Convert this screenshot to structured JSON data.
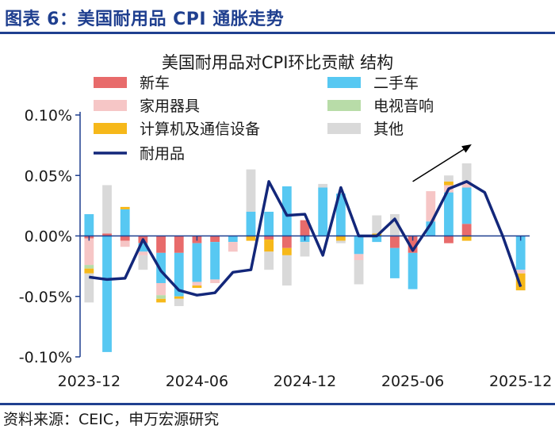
{
  "header": {
    "title": "图表 6：美国耐用品 CPI 通胀走势"
  },
  "footer": {
    "source": "资料来源：CEIC，申万宏源研究"
  },
  "colors": {
    "brand_blue": "#1f3f8f",
    "axis": "#1f3f8f",
    "text": "#1a1a1a"
  },
  "chart_data": {
    "type": "bar",
    "stacked": true,
    "title": "美国耐用品对CPI环比贡献 结构",
    "ylim": [
      -0.1,
      0.1
    ],
    "ytick_values": [
      -0.1,
      -0.05,
      0.0,
      0.05,
      0.1
    ],
    "ytick_labels": [
      "-0.10%",
      "-0.05%",
      "0.00%",
      "0.05%",
      "0.10%"
    ],
    "x": [
      "2023-12",
      "2024-01",
      "2024-02",
      "2024-03",
      "2024-04",
      "2024-05",
      "2024-06",
      "2024-07",
      "2024-08",
      "2024-09",
      "2024-10",
      "2024-11",
      "2024-12",
      "2025-01",
      "2025-02",
      "2025-03",
      "2025-04",
      "2025-05",
      "2025-06",
      "2025-07",
      "2025-08",
      "2025-09",
      "2025-10",
      "2025-11",
      "2025-12"
    ],
    "xtick_labels": [
      "2023-12",
      "2024-06",
      "2024-12",
      "2025-06",
      "2025-12"
    ],
    "xtick_index": [
      0,
      6,
      12,
      18,
      24
    ],
    "grid": false,
    "legend_position": "top",
    "series": [
      {
        "name": "新车",
        "color": "#e86b6b",
        "values": [
          -0.002,
          0.002,
          -0.004,
          -0.006,
          -0.014,
          -0.014,
          -0.006,
          -0.005,
          0.0,
          0.0,
          -0.003,
          -0.01,
          0.013,
          0.0,
          0.0,
          0.0,
          0.0,
          -0.01,
          -0.014,
          0.0,
          -0.006,
          0.01,
          null,
          null,
          0.0
        ]
      },
      {
        "name": "二手车",
        "color": "#57c8f2",
        "values": [
          0.018,
          -0.096,
          0.022,
          -0.007,
          -0.025,
          -0.036,
          -0.032,
          -0.031,
          -0.005,
          0.02,
          0.02,
          0.041,
          -0.005,
          0.04,
          0.035,
          -0.015,
          -0.005,
          -0.025,
          -0.03,
          0.012,
          0.036,
          0.03,
          null,
          null,
          -0.028
        ]
      },
      {
        "name": "家用器具",
        "color": "#f6c6c6",
        "values": [
          -0.022,
          0.0,
          -0.005,
          -0.003,
          -0.01,
          0.0,
          -0.003,
          -0.003,
          -0.008,
          0.0,
          0.0,
          0.0,
          0.0,
          0.0,
          0.0,
          -0.005,
          0.0,
          0.0,
          0.0,
          0.025,
          0.006,
          0.005,
          null,
          null,
          -0.003
        ]
      },
      {
        "name": "电视音响",
        "color": "#b8dca8",
        "values": [
          -0.003,
          0.0,
          0.0,
          0.0,
          -0.003,
          0.0,
          0.0,
          0.0,
          0.0,
          0.0,
          0.0,
          0.0,
          0.0,
          0.0,
          0.0,
          0.0,
          0.0,
          0.0,
          0.0,
          0.0,
          0.0,
          0.0,
          null,
          null,
          0.0
        ]
      },
      {
        "name": "计算机及通信设备",
        "color": "#f6b81a",
        "values": [
          -0.004,
          0.0,
          0.002,
          0.0,
          -0.003,
          -0.002,
          -0.002,
          0.0,
          0.0,
          -0.004,
          -0.01,
          -0.006,
          0.0,
          0.0,
          -0.004,
          0.0,
          0.002,
          0.0,
          0.0,
          0.0,
          0.003,
          -0.004,
          null,
          null,
          -0.014
        ]
      },
      {
        "name": "其他",
        "color": "#d9d9d9",
        "values": [
          -0.024,
          0.04,
          0.0,
          -0.012,
          0.0,
          -0.006,
          0.0,
          0.0,
          0.0,
          0.035,
          -0.015,
          -0.025,
          -0.012,
          0.003,
          -0.002,
          -0.02,
          0.015,
          0.018,
          0.0,
          0.0,
          0.005,
          0.015,
          null,
          null,
          0.0
        ]
      },
      {
        "name": "耐用品",
        "color": "#13277a",
        "kind": "line",
        "values": [
          -0.034,
          -0.036,
          -0.035,
          -0.003,
          -0.029,
          -0.045,
          -0.049,
          -0.047,
          -0.03,
          -0.028,
          0.045,
          0.017,
          0.018,
          -0.016,
          0.04,
          0.0,
          0.0,
          0.014,
          -0.012,
          0.01,
          0.039,
          0.045,
          0.036,
          0.0,
          -0.042
        ]
      }
    ],
    "annotation": {
      "type": "arrow",
      "from": [
        18.0,
        0.045
      ],
      "to": [
        21.2,
        0.075
      ]
    }
  }
}
